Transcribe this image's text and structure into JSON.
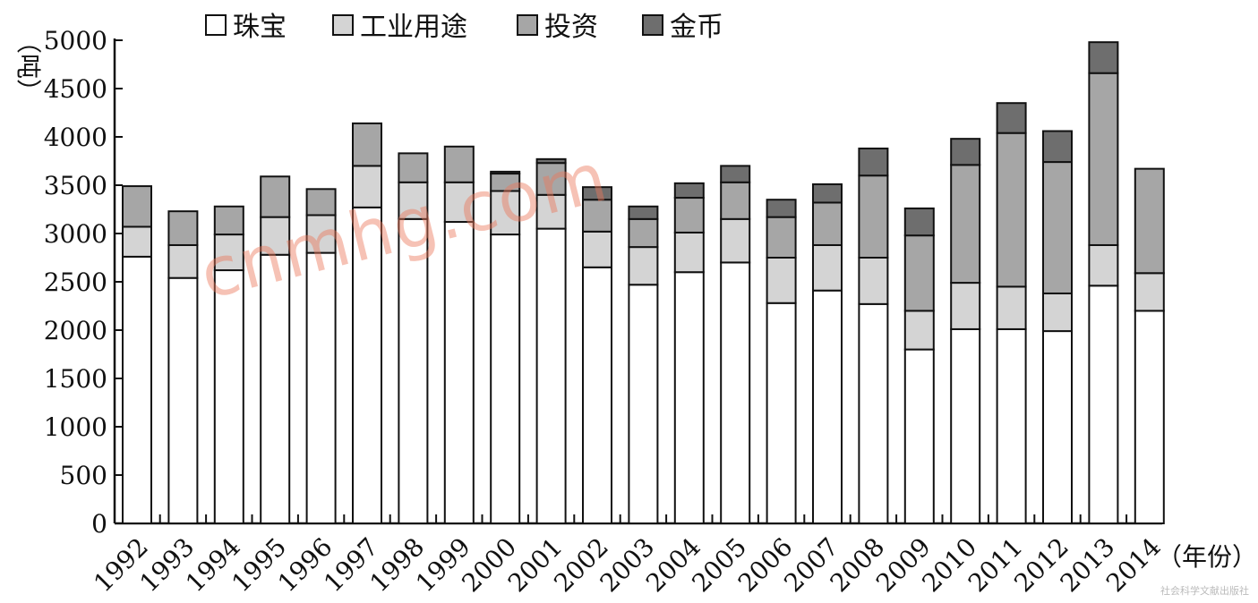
{
  "chart_data": {
    "type": "bar",
    "stacked": true,
    "title": "",
    "xlabel": "（年份）",
    "ylabel": "（吨）",
    "ylim": [
      0,
      5000
    ],
    "yticks": [
      0,
      500,
      1000,
      1500,
      2000,
      2500,
      3000,
      3500,
      4000,
      4500,
      5000
    ],
    "grid": false,
    "legend_position": "top-left",
    "categories": [
      "1992",
      "1993",
      "1994",
      "1995",
      "1996",
      "1997",
      "1998",
      "1999",
      "2000",
      "2001",
      "2002",
      "2003",
      "2004",
      "2005",
      "2006",
      "2007",
      "2008",
      "2009",
      "2010",
      "2011",
      "2012",
      "2013",
      "2014"
    ],
    "series": [
      {
        "name": "珠宝",
        "color": "#ffffff",
        "values": [
          2760,
          2540,
          2620,
          2780,
          2800,
          3270,
          3150,
          3120,
          2990,
          3050,
          2650,
          2470,
          2600,
          2700,
          2280,
          2410,
          2270,
          1800,
          2010,
          2010,
          1990,
          2460,
          2200
        ]
      },
      {
        "name": "工业用途",
        "color": "#d4d4d4",
        "values": [
          310,
          340,
          370,
          390,
          390,
          430,
          380,
          410,
          450,
          350,
          370,
          390,
          410,
          450,
          470,
          470,
          480,
          400,
          480,
          440,
          390,
          420,
          390
        ]
      },
      {
        "name": "投资",
        "color": "#a6a6a6",
        "values": [
          420,
          350,
          290,
          420,
          270,
          440,
          300,
          370,
          180,
          330,
          330,
          290,
          360,
          380,
          420,
          440,
          850,
          780,
          1220,
          1590,
          1360,
          1780,
          1080
        ]
      },
      {
        "name": "金币",
        "color": "#6e6e6e",
        "values": [
          0,
          0,
          0,
          0,
          0,
          0,
          0,
          0,
          20,
          40,
          130,
          130,
          150,
          170,
          180,
          190,
          280,
          280,
          270,
          310,
          320,
          320,
          0
        ]
      }
    ],
    "watermark": "cnmhg.com",
    "credit": "社会科学文献出版社"
  }
}
